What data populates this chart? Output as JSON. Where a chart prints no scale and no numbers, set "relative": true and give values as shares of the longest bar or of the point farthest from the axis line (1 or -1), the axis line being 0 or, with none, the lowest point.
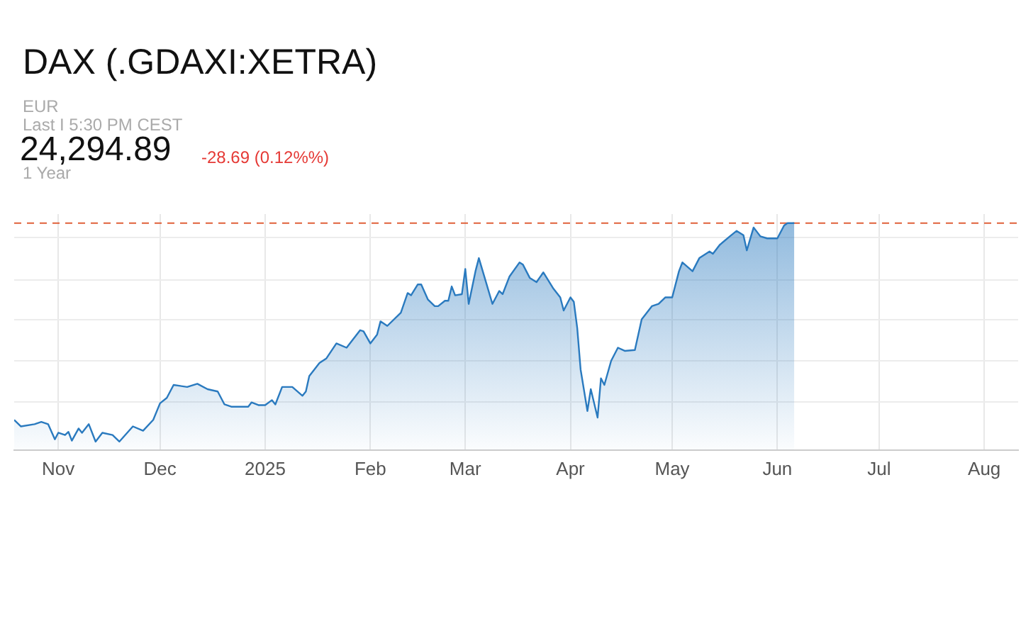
{
  "chart_data": {
    "type": "area",
    "title": "DAX (.GDAXI:XETRA)",
    "relative": true,
    "grid": true,
    "legend": false,
    "annotations": [
      "EUR",
      "Last I 5:30 PM CEST",
      "24,294.89",
      "-28.69 (0.12%%)",
      "1 Year"
    ],
    "xlim": [
      "2024-10-19",
      "2025-08-11"
    ],
    "xticks": [
      {
        "value": "2024-11-01",
        "label": "Nov"
      },
      {
        "value": "2024-12-01",
        "label": "Dec"
      },
      {
        "value": "2025-01-01",
        "label": "2025"
      },
      {
        "value": "2025-02-01",
        "label": "Feb"
      },
      {
        "value": "2025-03-01",
        "label": "Mar"
      },
      {
        "value": "2025-04-01",
        "label": "Apr"
      },
      {
        "value": "2025-05-01",
        "label": "May"
      },
      {
        "value": "2025-06-01",
        "label": "Jun"
      },
      {
        "value": "2025-07-01",
        "label": "Jul"
      },
      {
        "value": "2025-08-01",
        "label": "Aug"
      }
    ],
    "ref_lines": [
      {
        "axis": "y",
        "value": 1,
        "color": "#e0603a",
        "line_style": "dashed"
      }
    ],
    "series": [
      {
        "color": "#2a7abf",
        "x": [
          "2024-10-19",
          "2024-10-21",
          "2024-10-25",
          "2024-10-27",
          "2024-10-29",
          "2024-10-31",
          "2024-11-01",
          "2024-11-03",
          "2024-11-04",
          "2024-11-05",
          "2024-11-07",
          "2024-11-08",
          "2024-11-10",
          "2024-11-12",
          "2024-11-14",
          "2024-11-17",
          "2024-11-19",
          "2024-11-23",
          "2024-11-26",
          "2024-11-29",
          "2024-12-01",
          "2024-12-03",
          "2024-12-05",
          "2024-12-09",
          "2024-12-12",
          "2024-12-15",
          "2024-12-18",
          "2024-12-20",
          "2024-12-22",
          "2024-12-27",
          "2024-12-28",
          "2024-12-30",
          "2025-01-01",
          "2025-01-03",
          "2025-01-04",
          "2025-01-06",
          "2025-01-09",
          "2025-01-12",
          "2025-01-13",
          "2025-01-14",
          "2025-01-17",
          "2025-01-19",
          "2025-01-22",
          "2025-01-25",
          "2025-01-29",
          "2025-01-30",
          "2025-02-01",
          "2025-02-03",
          "2025-02-04",
          "2025-02-06",
          "2025-02-10",
          "2025-02-12",
          "2025-02-13",
          "2025-02-15",
          "2025-02-16",
          "2025-02-18",
          "2025-02-20",
          "2025-02-21",
          "2025-02-23",
          "2025-02-24",
          "2025-02-25",
          "2025-02-26",
          "2025-02-28",
          "2025-03-01",
          "2025-03-02",
          "2025-03-04",
          "2025-03-05",
          "2025-03-07",
          "2025-03-09",
          "2025-03-11",
          "2025-03-12",
          "2025-03-14",
          "2025-03-17",
          "2025-03-18",
          "2025-03-20",
          "2025-03-22",
          "2025-03-24",
          "2025-03-27",
          "2025-03-29",
          "2025-03-30",
          "2025-04-01",
          "2025-04-02",
          "2025-04-03",
          "2025-04-04",
          "2025-04-06",
          "2025-04-07",
          "2025-04-09",
          "2025-04-10",
          "2025-04-11",
          "2025-04-13",
          "2025-04-15",
          "2025-04-17",
          "2025-04-20",
          "2025-04-22",
          "2025-04-25",
          "2025-04-27",
          "2025-04-29",
          "2025-05-01",
          "2025-05-03",
          "2025-05-04",
          "2025-05-07",
          "2025-05-09",
          "2025-05-12",
          "2025-05-13",
          "2025-05-15",
          "2025-05-18",
          "2025-05-20",
          "2025-05-22",
          "2025-05-23",
          "2025-05-25",
          "2025-05-27",
          "2025-05-29",
          "2025-06-01",
          "2025-06-03",
          "2025-06-04",
          "2025-06-06"
        ],
        "values": [
          0.133,
          0.104,
          0.114,
          0.124,
          0.114,
          0.047,
          0.076,
          0.066,
          0.08,
          0.041,
          0.095,
          0.076,
          0.114,
          0.037,
          0.076,
          0.066,
          0.037,
          0.104,
          0.085,
          0.133,
          0.206,
          0.23,
          0.287,
          0.278,
          0.292,
          0.268,
          0.258,
          0.201,
          0.191,
          0.191,
          0.21,
          0.198,
          0.198,
          0.22,
          0.201,
          0.278,
          0.278,
          0.239,
          0.258,
          0.326,
          0.384,
          0.403,
          0.47,
          0.451,
          0.528,
          0.523,
          0.47,
          0.509,
          0.567,
          0.547,
          0.605,
          0.692,
          0.682,
          0.73,
          0.73,
          0.663,
          0.634,
          0.634,
          0.658,
          0.658,
          0.721,
          0.682,
          0.687,
          0.798,
          0.644,
          0.788,
          0.846,
          0.745,
          0.644,
          0.701,
          0.687,
          0.764,
          0.827,
          0.817,
          0.759,
          0.74,
          0.783,
          0.711,
          0.673,
          0.615,
          0.673,
          0.653,
          0.538,
          0.355,
          0.172,
          0.268,
          0.143,
          0.316,
          0.287,
          0.393,
          0.451,
          0.437,
          0.441,
          0.576,
          0.634,
          0.644,
          0.673,
          0.673,
          0.788,
          0.827,
          0.788,
          0.846,
          0.875,
          0.865,
          0.904,
          0.942,
          0.966,
          0.947,
          0.88,
          0.981,
          0.942,
          0.933,
          0.933,
          0.99,
          1,
          1
        ]
      }
    ]
  }
}
